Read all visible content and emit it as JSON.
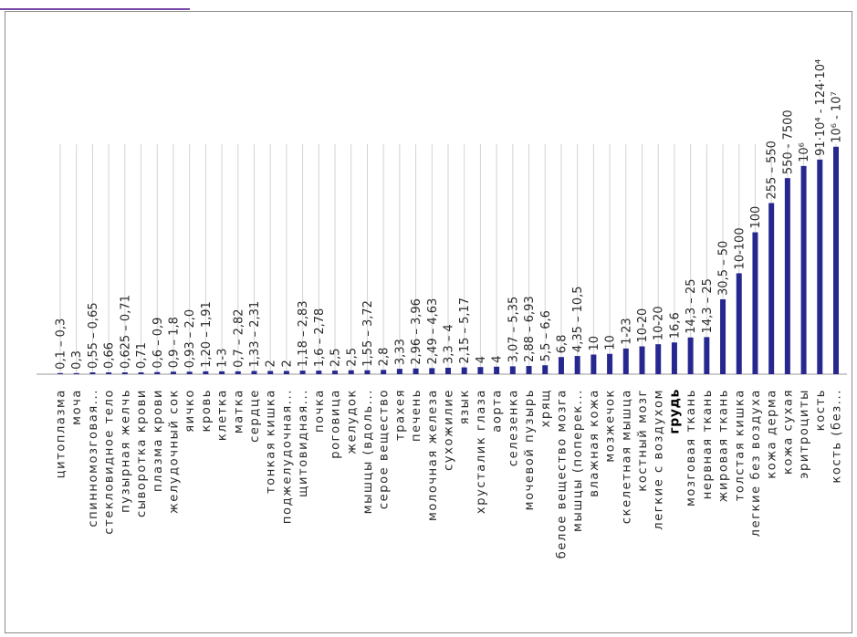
{
  "chart_data": {
    "type": "bar",
    "title": "",
    "xlabel": "",
    "ylabel": "",
    "y_scale": "relative",
    "grid": true,
    "colors": {
      "bar": "#27288f"
    },
    "categories": [
      "цитоплазма",
      "моча",
      "спинномозговая...",
      "стекловидное тело",
      "пузырная желчь",
      "сыворотка крови",
      "плазма крови",
      "желудочный сок",
      "яичко",
      "кровь",
      "клетка",
      "матка",
      "сердце",
      "тонкая кишка",
      "поджелудочная...",
      "щитовидная...",
      "почка",
      "роговица",
      "желудок",
      "мышцы (вдоль...",
      "серое вещество",
      "трахея",
      "печень",
      "молочная железа",
      "сухожилие",
      "язык",
      "хрусталик глаза",
      "аорта",
      "селезенка",
      "мочевой пузырь",
      "хрящ",
      "белое вещество мозга",
      "мышцы (поперек...",
      "влажная кожа",
      "мозжечок",
      "скелетная мышца",
      "костный мозг",
      "легкие с воздухом",
      "грудь",
      "мозговая ткань",
      "нервная ткань",
      "жировая ткань",
      "толстая кишка",
      "легкие без воздуха",
      "кожа дерма",
      "кожа сухая",
      "эритроциты",
      "кость",
      "кость (без..."
    ],
    "category_bold": [
      false,
      false,
      false,
      false,
      false,
      false,
      false,
      false,
      false,
      false,
      false,
      false,
      false,
      false,
      false,
      false,
      false,
      false,
      false,
      false,
      false,
      false,
      false,
      false,
      false,
      false,
      false,
      false,
      false,
      false,
      false,
      false,
      false,
      false,
      false,
      false,
      false,
      false,
      true,
      false,
      false,
      false,
      false,
      false,
      false,
      false,
      false,
      false,
      false
    ],
    "value_labels": [
      "0,1 – 0,3",
      "0,3",
      "0,55 – 0,65",
      "0,66",
      "0,625 – 0,71",
      "0,71",
      "0,6 – 0,9",
      "0,9 – 1,8",
      "0,93 – 2,0",
      "1,20 – 1,91",
      "1-3",
      "0,7 – 2,82",
      "1,33 – 2,31",
      "2",
      "2",
      "1,18 – 2,83",
      "1,6 – 2,78",
      "2,5",
      "2,5",
      "1,55 – 3,72",
      "2,8",
      "3,33",
      "2,96 – 3,96",
      "2,49 – 4,63",
      "3,3 – 4",
      "2,15 – 5,17",
      "4",
      "4",
      "3,07 – 5,35",
      "2,88 – 6,93",
      "5,5 – 6,6",
      "6,8",
      "4,35 – 10,5",
      "10",
      "10",
      "1-23",
      "10-20",
      "10-20",
      "16,6",
      "14,3 – 25",
      "14,3 – 25",
      "30,5 – 50",
      "10-100",
      "100",
      "255 – 550",
      "550 - 7500",
      "10⁶",
      "91·10⁴ - 124·10⁴",
      "10⁶ - 10⁷"
    ],
    "values": [
      0.3,
      0.3,
      0.5,
      0.5,
      0.5,
      0.5,
      0.6,
      0.7,
      0.7,
      0.8,
      0.8,
      0.8,
      0.9,
      0.9,
      0.9,
      1.0,
      1.0,
      1.0,
      1.1,
      1.1,
      1.2,
      1.5,
      1.6,
      1.7,
      1.8,
      1.9,
      2.0,
      2.1,
      2.2,
      2.3,
      2.5,
      4.8,
      5.1,
      5.5,
      5.7,
      7.2,
      7.8,
      8.4,
      8.9,
      10.3,
      10.4,
      21.0,
      28.3,
      39.8,
      48.0,
      55.0,
      58.4,
      60.2,
      63.8
    ],
    "ylim": [
      0,
      64
    ]
  }
}
